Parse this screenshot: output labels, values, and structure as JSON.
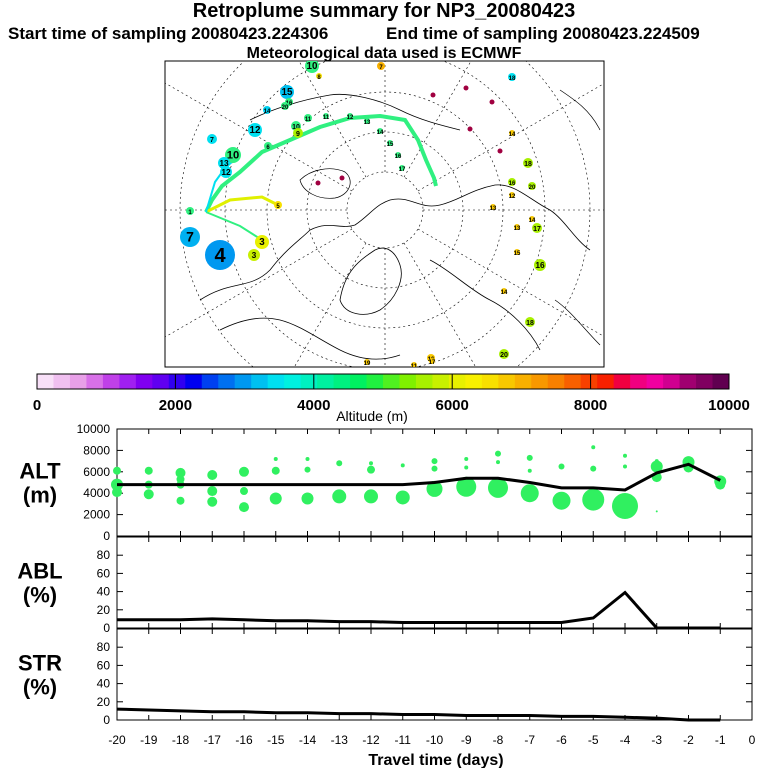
{
  "header": {
    "title": "Retroplume summary for NP3_20080423",
    "start_label": "Start time of sampling 20080423.224306",
    "end_label": "End time of sampling 20080423.224509",
    "met_label": "Meteorological data used is ECMWF"
  },
  "colorbar": {
    "ticks": [
      "0",
      "2000",
      "4000",
      "6000",
      "8000",
      "10000"
    ],
    "label": "Altitude (m)",
    "colors": [
      "#f8e0f8",
      "#f0c0f0",
      "#e8a0e8",
      "#d870e8",
      "#c040e8",
      "#a020f0",
      "#8000f0",
      "#6000f0",
      "#3000f0",
      "#0000f0",
      "#0040f0",
      "#0070f0",
      "#0098f0",
      "#00c0f0",
      "#00e0f0",
      "#00f0e0",
      "#00f0c0",
      "#00f0a0",
      "#00f080",
      "#00f060",
      "#20f040",
      "#50f020",
      "#80f000",
      "#a8f000",
      "#c8f000",
      "#e8f000",
      "#f8f000",
      "#f8e000",
      "#f8c800",
      "#f8b000",
      "#f89800",
      "#f88000",
      "#f86000",
      "#f84000",
      "#f82000",
      "#f00040",
      "#f00080",
      "#f000a0",
      "#d00090",
      "#a00070",
      "#800060",
      "#600050"
    ]
  },
  "map": {
    "numbers": [
      {
        "t": "10",
        "c": "#30f080"
      },
      {
        "t": "8",
        "c": "#f8e000"
      },
      {
        "t": "7",
        "c": "#f8b000"
      },
      {
        "t": "18",
        "c": "#00e0f0"
      },
      {
        "t": "15",
        "c": "#00c0f0"
      },
      {
        "t": "16",
        "c": "#30f080"
      },
      {
        "t": "20",
        "c": "#30f080"
      },
      {
        "t": "14",
        "c": "#00d0f0"
      },
      {
        "t": "12",
        "c": "#00e0f0"
      },
      {
        "t": "11",
        "c": "#30f080"
      },
      {
        "t": "10",
        "c": "#30f080"
      },
      {
        "t": "9",
        "c": "#a8f000"
      },
      {
        "t": "7",
        "c": "#00e0f0"
      },
      {
        "t": "10",
        "c": "#30f080"
      },
      {
        "t": "13",
        "c": "#00e0f0"
      },
      {
        "t": "12",
        "c": "#00e0f0"
      },
      {
        "t": "6",
        "c": "#30f080"
      },
      {
        "t": "1",
        "c": "#30f080"
      },
      {
        "t": "7",
        "c": "#00b0f0"
      },
      {
        "t": "4",
        "c": "#0098f0"
      },
      {
        "t": "3",
        "c": "#e8f000"
      },
      {
        "t": "3",
        "c": "#c8f000"
      },
      {
        "t": "5",
        "c": "#f8e000"
      },
      {
        "t": "11",
        "c": "#30f080"
      },
      {
        "t": "12",
        "c": "#30f080"
      },
      {
        "t": "13",
        "c": "#30f080"
      },
      {
        "t": "14",
        "c": "#30f080"
      },
      {
        "t": "15",
        "c": "#30f080"
      },
      {
        "t": "16",
        "c": "#30f080"
      },
      {
        "t": "17",
        "c": "#30f080"
      },
      {
        "t": "18",
        "c": "#a8f000"
      },
      {
        "t": "16",
        "c": "#a8f000"
      },
      {
        "t": "20",
        "c": "#a8f000"
      },
      {
        "t": "12",
        "c": "#f8c800"
      },
      {
        "t": "13",
        "c": "#f8c800"
      },
      {
        "t": "17",
        "c": "#a8f000"
      },
      {
        "t": "14",
        "c": "#f8c800"
      },
      {
        "t": "16",
        "c": "#a8f000"
      },
      {
        "t": "15",
        "c": "#f8c800"
      },
      {
        "t": "18",
        "c": "#a8f000"
      },
      {
        "t": "20",
        "c": "#a8f000"
      },
      {
        "t": "14",
        "c": "#f8c800"
      },
      {
        "t": "19",
        "c": "#f8c800"
      },
      {
        "t": "16",
        "c": "#f8c800"
      },
      {
        "t": "13",
        "c": "#f8c800"
      },
      {
        "t": "14",
        "c": "#f8c800"
      },
      {
        "t": "11",
        "c": "#f8c800"
      },
      {
        "t": "17",
        "c": "#f8c800"
      }
    ]
  },
  "chart_data": [
    {
      "type": "line",
      "id": "ALT",
      "ylabel": "ALT\n(m)",
      "ylim": [
        0,
        10000
      ],
      "yticks": [
        "0",
        "2000",
        "4000",
        "6000",
        "8000",
        "10000"
      ],
      "x": [
        -20,
        -19,
        -18,
        -17,
        -16,
        -15,
        -14,
        -13,
        -12,
        -11,
        -10,
        -9,
        -8,
        -7,
        -6,
        -5,
        -4,
        -3,
        -2,
        -1
      ],
      "values": [
        4800,
        4800,
        4800,
        4800,
        4800,
        4800,
        4800,
        4800,
        4800,
        4800,
        5000,
        5400,
        5400,
        5000,
        4500,
        4500,
        4300,
        5900,
        6700,
        5200
      ],
      "clusters": [
        {
          "x": -20,
          "y": 6100,
          "s": 4
        },
        {
          "x": -20,
          "y": 4800,
          "s": 6
        },
        {
          "x": -20,
          "y": 4100,
          "s": 5
        },
        {
          "x": -19,
          "y": 6100,
          "s": 4
        },
        {
          "x": -19,
          "y": 4800,
          "s": 4
        },
        {
          "x": -19,
          "y": 3900,
          "s": 5
        },
        {
          "x": -18,
          "y": 5900,
          "s": 5
        },
        {
          "x": -18,
          "y": 5300,
          "s": 4
        },
        {
          "x": -18,
          "y": 4800,
          "s": 4
        },
        {
          "x": -18,
          "y": 3300,
          "s": 4
        },
        {
          "x": -17,
          "y": 5700,
          "s": 5
        },
        {
          "x": -17,
          "y": 4200,
          "s": 5
        },
        {
          "x": -17,
          "y": 3200,
          "s": 5
        },
        {
          "x": -16,
          "y": 6000,
          "s": 5
        },
        {
          "x": -16,
          "y": 4200,
          "s": 4
        },
        {
          "x": -16,
          "y": 2700,
          "s": 5
        },
        {
          "x": -15,
          "y": 7200,
          "s": 2
        },
        {
          "x": -15,
          "y": 6100,
          "s": 4
        },
        {
          "x": -15,
          "y": 3500,
          "s": 6
        },
        {
          "x": -14,
          "y": 7200,
          "s": 2
        },
        {
          "x": -14,
          "y": 6200,
          "s": 3
        },
        {
          "x": -14,
          "y": 3500,
          "s": 6
        },
        {
          "x": -13,
          "y": 6800,
          "s": 3
        },
        {
          "x": -13,
          "y": 3700,
          "s": 7
        },
        {
          "x": -12,
          "y": 6800,
          "s": 2
        },
        {
          "x": -12,
          "y": 6200,
          "s": 4
        },
        {
          "x": -12,
          "y": 3700,
          "s": 7
        },
        {
          "x": -11,
          "y": 6600,
          "s": 2
        },
        {
          "x": -11,
          "y": 4000,
          "s": 2
        },
        {
          "x": -11,
          "y": 3600,
          "s": 7
        },
        {
          "x": -10,
          "y": 7000,
          "s": 3
        },
        {
          "x": -10,
          "y": 6300,
          "s": 3
        },
        {
          "x": -10,
          "y": 4400,
          "s": 8
        },
        {
          "x": -9,
          "y": 7200,
          "s": 2
        },
        {
          "x": -9,
          "y": 6400,
          "s": 2
        },
        {
          "x": -9,
          "y": 4600,
          "s": 10
        },
        {
          "x": -8,
          "y": 7700,
          "s": 3
        },
        {
          "x": -8,
          "y": 6900,
          "s": 2
        },
        {
          "x": -8,
          "y": 4500,
          "s": 10
        },
        {
          "x": -7,
          "y": 7300,
          "s": 3
        },
        {
          "x": -7,
          "y": 6100,
          "s": 2
        },
        {
          "x": -7,
          "y": 4000,
          "s": 9
        },
        {
          "x": -6,
          "y": 6500,
          "s": 3
        },
        {
          "x": -6,
          "y": 3300,
          "s": 9
        },
        {
          "x": -5,
          "y": 8300,
          "s": 2
        },
        {
          "x": -5,
          "y": 6300,
          "s": 3
        },
        {
          "x": -5,
          "y": 3400,
          "s": 11
        },
        {
          "x": -4,
          "y": 7500,
          "s": 2
        },
        {
          "x": -4,
          "y": 6500,
          "s": 2
        },
        {
          "x": -4,
          "y": 2800,
          "s": 13
        },
        {
          "x": -3,
          "y": 7000,
          "s": 2
        },
        {
          "x": -3,
          "y": 6500,
          "s": 6
        },
        {
          "x": -3,
          "y": 5500,
          "s": 5
        },
        {
          "x": -3,
          "y": 2300,
          "s": 1
        },
        {
          "x": -2,
          "y": 6900,
          "s": 6
        },
        {
          "x": -2,
          "y": 6400,
          "s": 5
        },
        {
          "x": -1,
          "y": 5100,
          "s": 6
        },
        {
          "x": -1,
          "y": 4800,
          "s": 5
        }
      ]
    },
    {
      "type": "line",
      "id": "ABL",
      "ylabel": "ABL\n(%)",
      "ylim": [
        0,
        100
      ],
      "yticks": [
        "0",
        "20",
        "40",
        "60",
        "80"
      ],
      "x": [
        -20,
        -19,
        -18,
        -17,
        -16,
        -15,
        -14,
        -13,
        -12,
        -11,
        -10,
        -9,
        -8,
        -7,
        -6,
        -5,
        -4,
        -3,
        -2,
        -1
      ],
      "values": [
        9,
        9,
        9,
        10,
        9,
        8,
        8,
        7,
        7,
        6,
        6,
        6,
        6,
        6,
        6,
        11,
        39,
        0,
        0,
        0
      ]
    },
    {
      "type": "line",
      "id": "STR",
      "ylabel": "STR\n(%)",
      "ylim": [
        0,
        100
      ],
      "yticks": [
        "0",
        "20",
        "40",
        "60",
        "80"
      ],
      "x": [
        -20,
        -19,
        -18,
        -17,
        -16,
        -15,
        -14,
        -13,
        -12,
        -11,
        -10,
        -9,
        -8,
        -7,
        -6,
        -5,
        -4,
        -3,
        -2,
        -1
      ],
      "values": [
        12,
        11,
        10,
        9,
        9,
        8,
        8,
        7,
        7,
        6,
        6,
        5,
        5,
        5,
        4,
        4,
        3,
        2,
        0,
        0
      ],
      "xlabel": "Travel time (days)",
      "xticks": [
        "-20",
        "-19",
        "-18",
        "-17",
        "-16",
        "-15",
        "-14",
        "-13",
        "-12",
        "-11",
        "-10",
        "-9",
        "-8",
        "-7",
        "-6",
        "-5",
        "-4",
        "-3",
        "-2",
        "-1",
        "0"
      ]
    }
  ]
}
